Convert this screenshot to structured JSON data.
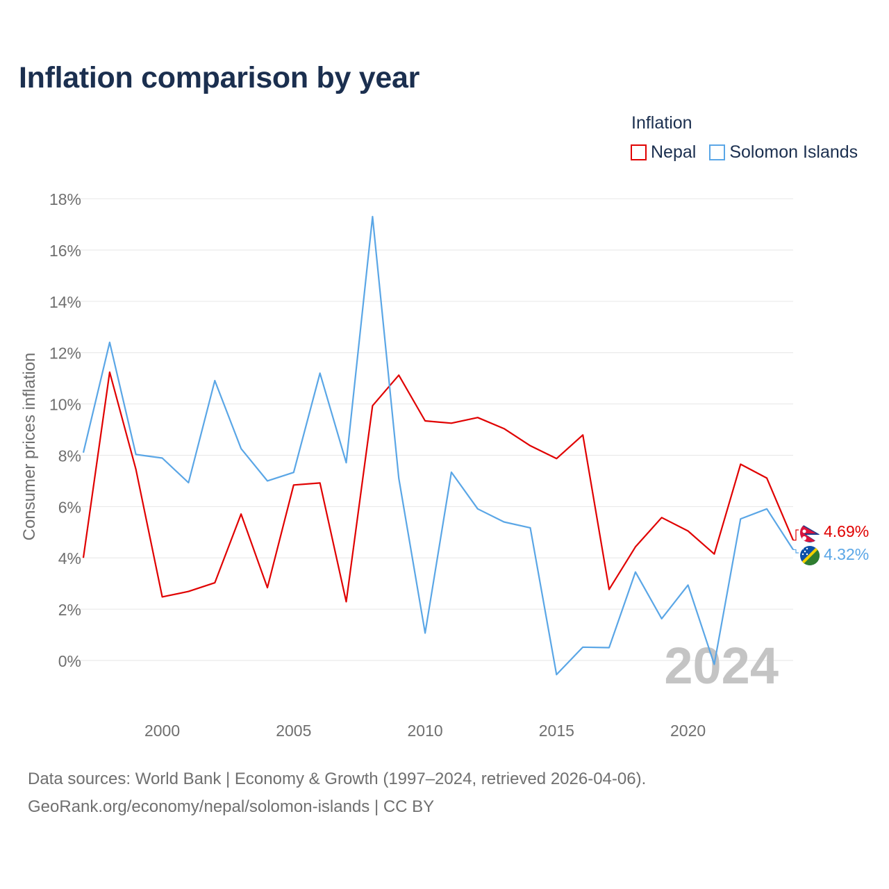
{
  "title": "Inflation comparison by year",
  "legend": {
    "title": "Inflation",
    "items": [
      {
        "name": "Nepal",
        "color": "#e00000"
      },
      {
        "name": "Solomon Islands",
        "color": "#5aa6e6"
      }
    ]
  },
  "footer": {
    "line1": "Data sources: World Bank | Economy & Growth (1997–2024, retrieved 2026-04-06).",
    "line2": "GeoRank.org/economy/nepal/solomon-islands | CC BY"
  },
  "chart_data": {
    "type": "line",
    "title": "Inflation comparison by year",
    "xlabel": "",
    "ylabel": "Consumer prices inflation",
    "xlim": [
      1997,
      2024
    ],
    "ylim": [
      -1.5,
      18
    ],
    "x_ticks": [
      2000,
      2005,
      2010,
      2015,
      2020
    ],
    "x_tick_labels": [
      "2000",
      "2005",
      "2010",
      "2015",
      "2020"
    ],
    "y_ticks": [
      0,
      2,
      4,
      6,
      8,
      10,
      12,
      14,
      16,
      18
    ],
    "y_tick_labels": [
      "0%",
      "2%",
      "4%",
      "6%",
      "8%",
      "10%",
      "12%",
      "14%",
      "16%",
      "18%"
    ],
    "grid": true,
    "year_label": "2024",
    "x": [
      1997,
      1998,
      1999,
      2000,
      2001,
      2002,
      2003,
      2004,
      2005,
      2006,
      2007,
      2008,
      2009,
      2010,
      2011,
      2012,
      2013,
      2014,
      2015,
      2016,
      2017,
      2018,
      2019,
      2020,
      2021,
      2022,
      2023,
      2024
    ],
    "series": [
      {
        "name": "Nepal",
        "color": "#e00000",
        "values": [
          4.0,
          11.24,
          7.45,
          2.48,
          2.69,
          3.03,
          5.71,
          2.84,
          6.84,
          6.92,
          2.29,
          9.93,
          11.12,
          9.34,
          9.25,
          9.47,
          9.04,
          8.37,
          7.87,
          8.79,
          2.77,
          4.43,
          5.57,
          5.05,
          4.15,
          7.65,
          7.11,
          4.69
        ],
        "end_label": "4.69%",
        "flag": "nepal-flag"
      },
      {
        "name": "Solomon Islands",
        "color": "#5aa6e6",
        "values": [
          8.1,
          12.4,
          8.03,
          7.89,
          6.93,
          10.91,
          8.26,
          7.0,
          7.33,
          11.2,
          7.71,
          17.3,
          7.1,
          1.07,
          7.34,
          5.91,
          5.4,
          5.17,
          -0.55,
          0.52,
          0.5,
          3.45,
          1.63,
          2.94,
          -0.15,
          5.52,
          5.91,
          4.32
        ],
        "end_label": "4.32%",
        "flag": "solomon-islands-flag"
      }
    ]
  }
}
